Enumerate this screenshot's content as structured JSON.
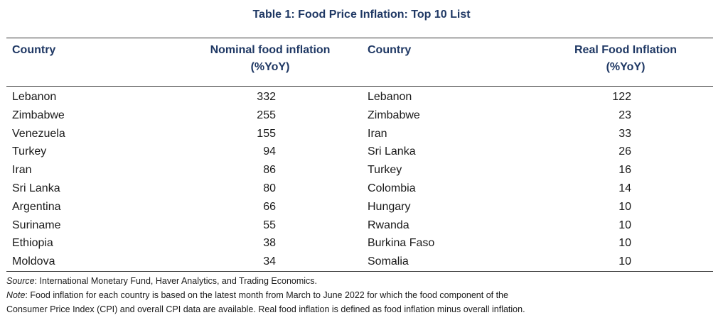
{
  "table": {
    "title": "Table 1: Food Price Inflation: Top 10 List",
    "headers": {
      "country_left": "Country",
      "nominal_line1": "Nominal food inflation",
      "nominal_line2": "(%YoY)",
      "country_right": "Country",
      "real_line1": "Real Food Inflation",
      "real_line2": "(%YoY)"
    },
    "rows": [
      {
        "nominal_country": "Lebanon",
        "nominal_value": "332",
        "real_country": "Lebanon",
        "real_value": "122"
      },
      {
        "nominal_country": "Zimbabwe",
        "nominal_value": "255",
        "real_country": "Zimbabwe",
        "real_value": "23"
      },
      {
        "nominal_country": "Venezuela",
        "nominal_value": "155",
        "real_country": "Iran",
        "real_value": "33"
      },
      {
        "nominal_country": "Turkey",
        "nominal_value": "94",
        "real_country": "Sri Lanka",
        "real_value": "26"
      },
      {
        "nominal_country": "Iran",
        "nominal_value": "86",
        "real_country": "Turkey",
        "real_value": "16"
      },
      {
        "nominal_country": "Sri Lanka",
        "nominal_value": "80",
        "real_country": "Colombia",
        "real_value": "14"
      },
      {
        "nominal_country": "Argentina",
        "nominal_value": "66",
        "real_country": "Hungary",
        "real_value": "10"
      },
      {
        "nominal_country": "Suriname",
        "nominal_value": "55",
        "real_country": "Rwanda",
        "real_value": "10"
      },
      {
        "nominal_country": "Ethiopia",
        "nominal_value": "38",
        "real_country": "Burkina Faso",
        "real_value": "10"
      },
      {
        "nominal_country": "Moldova",
        "nominal_value": "34",
        "real_country": "Somalia",
        "real_value": "10"
      }
    ]
  },
  "footnotes": {
    "source_label": "Source",
    "source_text": ": International Monetary Fund, Haver Analytics, and Trading Economics.",
    "note_label": "Note",
    "note_text_line1": ": Food inflation for each country is based on the latest month from March to June 2022 for which the food component of the",
    "note_text_line2": "Consumer Price Index (CPI) and overall CPI data are available. Real food inflation is defined as food inflation minus overall inflation."
  },
  "colors": {
    "heading_blue": "#1f3864",
    "text": "#1a1a1a",
    "rule": "#333333"
  }
}
